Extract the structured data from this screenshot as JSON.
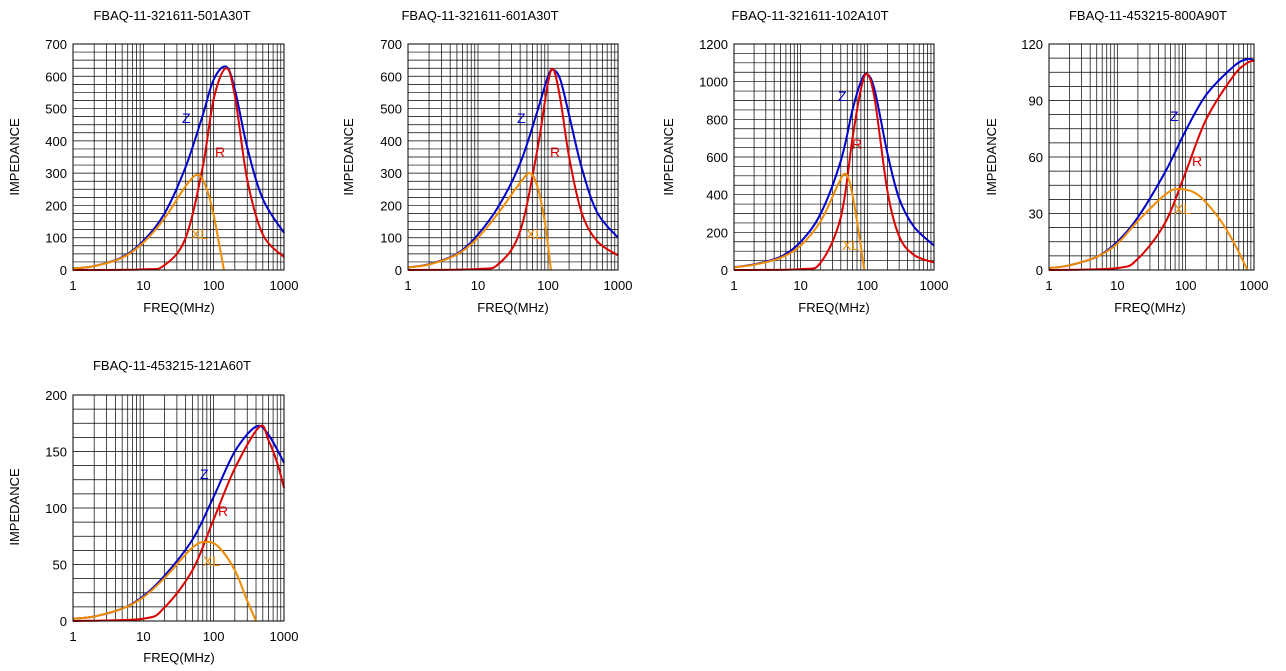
{
  "colors": {
    "Z": "#0000cc",
    "R": "#dd0000",
    "XL": "#f08c00",
    "grid": "#000000"
  },
  "chart_data": [
    {
      "type": "line",
      "title": "FBAQ-11-321611-501A30T",
      "xlabel": "FREQ(MHz)",
      "ylabel": "IMPEDANCE",
      "xscale": "log",
      "xlim": [
        1,
        1000
      ],
      "ylim": [
        0,
        700
      ],
      "xticks": [
        "1",
        "10",
        "100",
        "1000"
      ],
      "yticks": [
        "0",
        "100",
        "200",
        "300",
        "400",
        "500",
        "600",
        "700"
      ],
      "series": [
        {
          "name": "Z",
          "x": [
            1,
            2,
            5,
            10,
            20,
            40,
            70,
            100,
            150,
            200,
            300,
            500,
            1000
          ],
          "y": [
            5,
            12,
            40,
            90,
            175,
            320,
            480,
            590,
            630,
            560,
            380,
            220,
            115
          ]
        },
        {
          "name": "R",
          "x": [
            1,
            10,
            20,
            40,
            70,
            100,
            150,
            200,
            300,
            500,
            1000
          ],
          "y": [
            0,
            2,
            15,
            100,
            320,
            530,
            625,
            540,
            280,
            110,
            40
          ]
        },
        {
          "name": "XL",
          "x": [
            1,
            2,
            5,
            10,
            20,
            40,
            60,
            80,
            100,
            120,
            140
          ],
          "y": [
            5,
            12,
            38,
            85,
            160,
            260,
            295,
            250,
            170,
            80,
            0
          ]
        }
      ],
      "annotations": [
        "Z",
        "R",
        "XL"
      ]
    },
    {
      "type": "line",
      "title": "FBAQ-11-321611-601A30T",
      "xlabel": "FREQ(MHz)",
      "ylabel": "IMPEDANCE",
      "xscale": "log",
      "xlim": [
        1,
        1000
      ],
      "ylim": [
        0,
        700
      ],
      "xticks": [
        "1",
        "10",
        "100",
        "1000"
      ],
      "yticks": [
        "0",
        "100",
        "200",
        "300",
        "400",
        "500",
        "600",
        "700"
      ],
      "series": [
        {
          "name": "Z",
          "x": [
            1,
            2,
            5,
            10,
            20,
            40,
            70,
            100,
            120,
            150,
            200,
            300,
            500,
            1000
          ],
          "y": [
            8,
            18,
            50,
            110,
            200,
            330,
            490,
            600,
            620,
            590,
            480,
            320,
            180,
            100
          ]
        },
        {
          "name": "R",
          "x": [
            1,
            10,
            20,
            40,
            70,
            100,
            120,
            150,
            200,
            300,
            500,
            1000
          ],
          "y": [
            0,
            3,
            20,
            120,
            370,
            580,
            620,
            530,
            350,
            180,
            90,
            45
          ]
        },
        {
          "name": "XL",
          "x": [
            1,
            2,
            5,
            10,
            20,
            40,
            55,
            70,
            90,
            110
          ],
          "y": [
            8,
            17,
            48,
            100,
            180,
            270,
            300,
            260,
            150,
            0
          ]
        }
      ],
      "annotations": [
        "Z",
        "R",
        "XL"
      ]
    },
    {
      "type": "line",
      "title": "FBAQ-11-321611-102A10T",
      "xlabel": "FREQ(MHz)",
      "ylabel": "IMPEDANCE",
      "xscale": "log",
      "xlim": [
        1,
        1000
      ],
      "ylim": [
        0,
        1200
      ],
      "xticks": [
        "1",
        "10",
        "100",
        "1000"
      ],
      "yticks": [
        "0",
        "200",
        "400",
        "600",
        "800",
        "1000",
        "1200"
      ],
      "series": [
        {
          "name": "Z",
          "x": [
            1,
            2,
            5,
            10,
            20,
            40,
            60,
            80,
            100,
            130,
            200,
            300,
            500,
            1000
          ],
          "y": [
            15,
            30,
            70,
            150,
            300,
            580,
            850,
            1000,
            1040,
            950,
            620,
            380,
            230,
            130
          ]
        },
        {
          "name": "R",
          "x": [
            1,
            10,
            20,
            40,
            60,
            80,
            100,
            130,
            200,
            300,
            500,
            1000
          ],
          "y": [
            0,
            5,
            40,
            280,
            700,
            960,
            1040,
            900,
            420,
            180,
            80,
            40
          ]
        },
        {
          "name": "XL",
          "x": [
            1,
            2,
            5,
            10,
            20,
            35,
            45,
            55,
            70,
            90
          ],
          "y": [
            15,
            28,
            65,
            130,
            260,
            440,
            510,
            460,
            260,
            0
          ]
        }
      ],
      "annotations": [
        "Z",
        "R",
        "XL"
      ]
    },
    {
      "type": "line",
      "title": "FBAQ-11-453215-800A90T",
      "xlabel": "FREQ(MHz)",
      "ylabel": "IMPEDANCE",
      "xscale": "log",
      "xlim": [
        1,
        1000
      ],
      "ylim": [
        0,
        120
      ],
      "xticks": [
        "1",
        "10",
        "100",
        "1000"
      ],
      "yticks": [
        "0",
        "30",
        "60",
        "90",
        "120"
      ],
      "series": [
        {
          "name": "Z",
          "x": [
            1,
            2,
            5,
            10,
            20,
            50,
            100,
            200,
            500,
            800,
            1000
          ],
          "y": [
            1,
            2.5,
            7,
            15,
            28,
            52,
            74,
            93,
            108,
            112,
            111
          ]
        },
        {
          "name": "R",
          "x": [
            1,
            10,
            20,
            50,
            100,
            200,
            500,
            800,
            1000
          ],
          "y": [
            0,
            1,
            6,
            25,
            52,
            80,
            103,
            110,
            111
          ]
        },
        {
          "name": "XL",
          "x": [
            1,
            2,
            5,
            10,
            20,
            50,
            80,
            150,
            300,
            500,
            800
          ],
          "y": [
            1,
            2.5,
            7,
            14,
            26,
            40,
            43,
            40,
            28,
            15,
            0
          ]
        }
      ],
      "annotations": [
        "Z",
        "R",
        "XL"
      ]
    },
    {
      "type": "line",
      "title": "FBAQ-11-453215-121A60T",
      "xlabel": "FREQ(MHz)",
      "ylabel": "IMPEDANCE",
      "xscale": "log",
      "xlim": [
        1,
        1000
      ],
      "ylim": [
        0,
        200
      ],
      "xticks": [
        "1",
        "10",
        "100",
        "1000"
      ],
      "yticks": [
        "0",
        "50",
        "100",
        "150",
        "200"
      ],
      "series": [
        {
          "name": "Z",
          "x": [
            1,
            2,
            5,
            10,
            20,
            50,
            100,
            200,
            400,
            600,
            1000
          ],
          "y": [
            2,
            4,
            11,
            22,
            40,
            72,
            110,
            150,
            172,
            165,
            140
          ]
        },
        {
          "name": "R",
          "x": [
            1,
            10,
            20,
            50,
            100,
            200,
            450,
            600,
            800,
            1000
          ],
          "y": [
            0,
            2,
            12,
            45,
            90,
            135,
            172,
            160,
            140,
            118
          ]
        },
        {
          "name": "XL",
          "x": [
            1,
            2,
            5,
            10,
            20,
            50,
            80,
            120,
            200,
            300,
            400
          ],
          "y": [
            2,
            4,
            11,
            21,
            38,
            65,
            70,
            65,
            45,
            18,
            0
          ]
        }
      ],
      "annotations": [
        "Z",
        "R",
        "XL"
      ]
    }
  ]
}
